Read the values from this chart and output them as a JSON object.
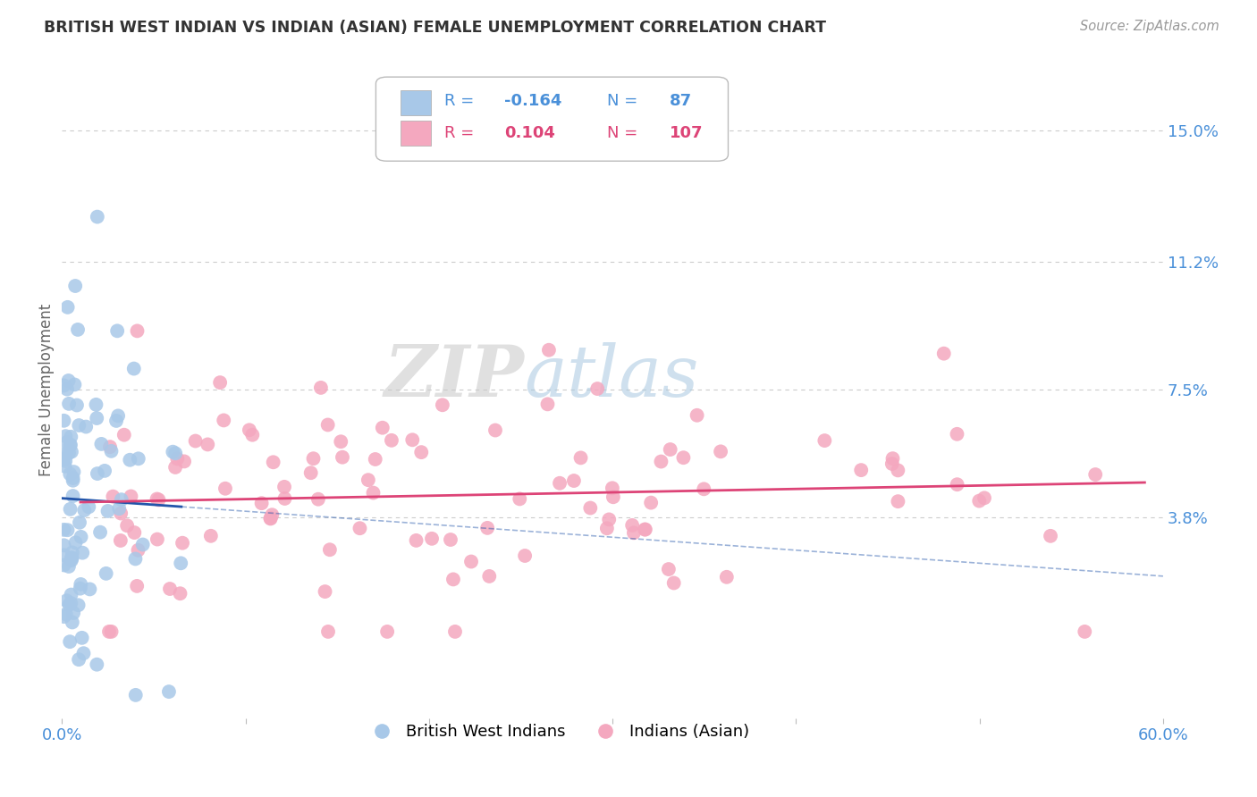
{
  "title": "BRITISH WEST INDIAN VS INDIAN (ASIAN) FEMALE UNEMPLOYMENT CORRELATION CHART",
  "source": "Source: ZipAtlas.com",
  "ylabel": "Female Unemployment",
  "xlim": [
    0.0,
    0.6
  ],
  "ylim": [
    -0.02,
    0.17
  ],
  "ytick_positions": [
    0.038,
    0.075,
    0.112,
    0.15
  ],
  "ytick_labels": [
    "3.8%",
    "7.5%",
    "11.2%",
    "15.0%"
  ],
  "blue_R": -0.164,
  "blue_N": 87,
  "pink_R": 0.104,
  "pink_N": 107,
  "blue_color": "#a8c8e8",
  "pink_color": "#f4a8bf",
  "blue_line_color": "#2255aa",
  "pink_line_color": "#dd4477",
  "legend_label_blue": "British West Indians",
  "legend_label_pink": "Indians (Asian)",
  "watermark_zip": "ZIP",
  "watermark_atlas": "atlas",
  "background_color": "#ffffff",
  "grid_color": "#cccccc",
  "title_color": "#333333",
  "axis_label_color": "#666666",
  "ytick_color": "#4a90d9",
  "source_color": "#999999"
}
